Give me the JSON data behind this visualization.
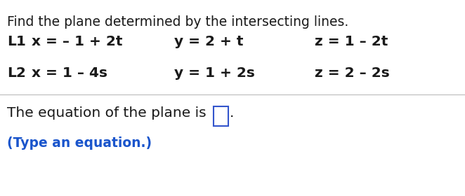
{
  "title_text": "Find the plane determined by the intersecting lines.",
  "L1_label": "L1",
  "L1_x": "x = – 1 + 2t",
  "L1_y": "y = 2 + t",
  "L1_z": "z = 1 – 2t",
  "L2_label": "L2",
  "L2_x": "x = 1 – 4s",
  "L2_y": "y = 1 + 2s",
  "L2_z": "z = 2 – 2s",
  "bottom_text1": "The equation of the plane is ",
  "bottom_text2": ".",
  "bottom_hint": "(Type an equation.)",
  "bg_color": "#ffffff",
  "text_color": "#1a1a1a",
  "blue_color": "#1a55cc",
  "box_border_color": "#3355cc",
  "divider_color": "#bbbbbb",
  "title_fontsize": 13.5,
  "body_fontsize": 14.5,
  "hint_fontsize": 13.5,
  "fig_width": 6.62,
  "fig_height": 2.8,
  "dpi": 100
}
